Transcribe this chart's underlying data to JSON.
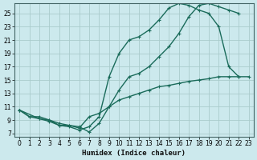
{
  "xlabel": "Humidex (Indice chaleur)",
  "bg_color": "#cce9ed",
  "grid_color": "#b0d4d8",
  "line_color": "#1a6b5a",
  "xlim": [
    -0.5,
    23.5
  ],
  "ylim": [
    6.5,
    26.5
  ],
  "xticks": [
    0,
    1,
    2,
    3,
    4,
    5,
    6,
    7,
    8,
    9,
    10,
    11,
    12,
    13,
    14,
    15,
    16,
    17,
    18,
    19,
    20,
    21,
    22,
    23
  ],
  "yticks": [
    7,
    9,
    11,
    13,
    15,
    17,
    19,
    21,
    23,
    25
  ],
  "line1_x": [
    0,
    1,
    2,
    3,
    4,
    5,
    6,
    7,
    8,
    9,
    10,
    11,
    12,
    13,
    14,
    15,
    16,
    17,
    18,
    19,
    20,
    21,
    22,
    23
  ],
  "line1_y": [
    10.5,
    9.5,
    9.5,
    9.0,
    8.2,
    8.2,
    7.8,
    9.5,
    10.0,
    11.0,
    12.0,
    12.5,
    13.0,
    13.5,
    14.0,
    14.2,
    14.5,
    14.8,
    15.0,
    15.2,
    15.5,
    15.5,
    15.5,
    15.5
  ],
  "line2_x": [
    0,
    1,
    2,
    3,
    4,
    5,
    6,
    7,
    8,
    9,
    10,
    11,
    12,
    13,
    14,
    15,
    16,
    17,
    18,
    19,
    20,
    21,
    22
  ],
  "line2_y": [
    10.5,
    9.5,
    9.2,
    8.8,
    8.2,
    8.0,
    7.5,
    8.0,
    9.5,
    15.5,
    19.0,
    21.0,
    21.5,
    22.5,
    24.0,
    25.8,
    26.5,
    26.2,
    25.5,
    25.0,
    23.0,
    17.0,
    15.5
  ],
  "line3_x": [
    0,
    2,
    3,
    4,
    5,
    6,
    7,
    8,
    9,
    10,
    11,
    12,
    13,
    14,
    15,
    16,
    17,
    18,
    19,
    20,
    21,
    22
  ],
  "line3_y": [
    10.5,
    9.2,
    9.0,
    8.5,
    8.2,
    8.0,
    7.2,
    8.5,
    11.0,
    13.5,
    15.5,
    16.0,
    17.0,
    18.5,
    20.0,
    22.0,
    24.5,
    26.2,
    26.5,
    26.0,
    25.5,
    25.0
  ]
}
